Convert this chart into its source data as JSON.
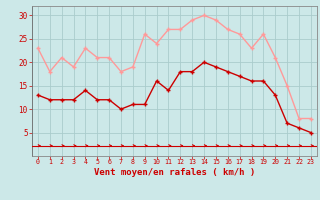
{
  "x": [
    0,
    1,
    2,
    3,
    4,
    5,
    6,
    7,
    8,
    9,
    10,
    11,
    12,
    13,
    14,
    15,
    16,
    17,
    18,
    19,
    20,
    21,
    22,
    23
  ],
  "wind_avg": [
    13,
    12,
    12,
    12,
    14,
    12,
    12,
    10,
    11,
    11,
    16,
    14,
    18,
    18,
    20,
    19,
    18,
    17,
    16,
    16,
    13,
    7,
    6,
    5
  ],
  "wind_gust": [
    23,
    18,
    21,
    19,
    23,
    21,
    21,
    18,
    19,
    26,
    24,
    27,
    27,
    29,
    30,
    29,
    27,
    26,
    23,
    26,
    21,
    15,
    8,
    8
  ],
  "bg_color": "#cce8e8",
  "grid_color": "#aacccc",
  "avg_color": "#cc0000",
  "gust_color": "#ff9999",
  "arrow_color": "#cc0000",
  "xlabel": "Vent moyen/en rafales ( km/h )",
  "xlabel_color": "#cc0000",
  "tick_color": "#cc0000",
  "spine_color": "#888888",
  "ylim": [
    0,
    32
  ],
  "yticks": [
    5,
    10,
    15,
    20,
    25,
    30
  ],
  "xlim": [
    -0.5,
    23.5
  ],
  "line_width": 1.0,
  "marker_size": 2.5
}
